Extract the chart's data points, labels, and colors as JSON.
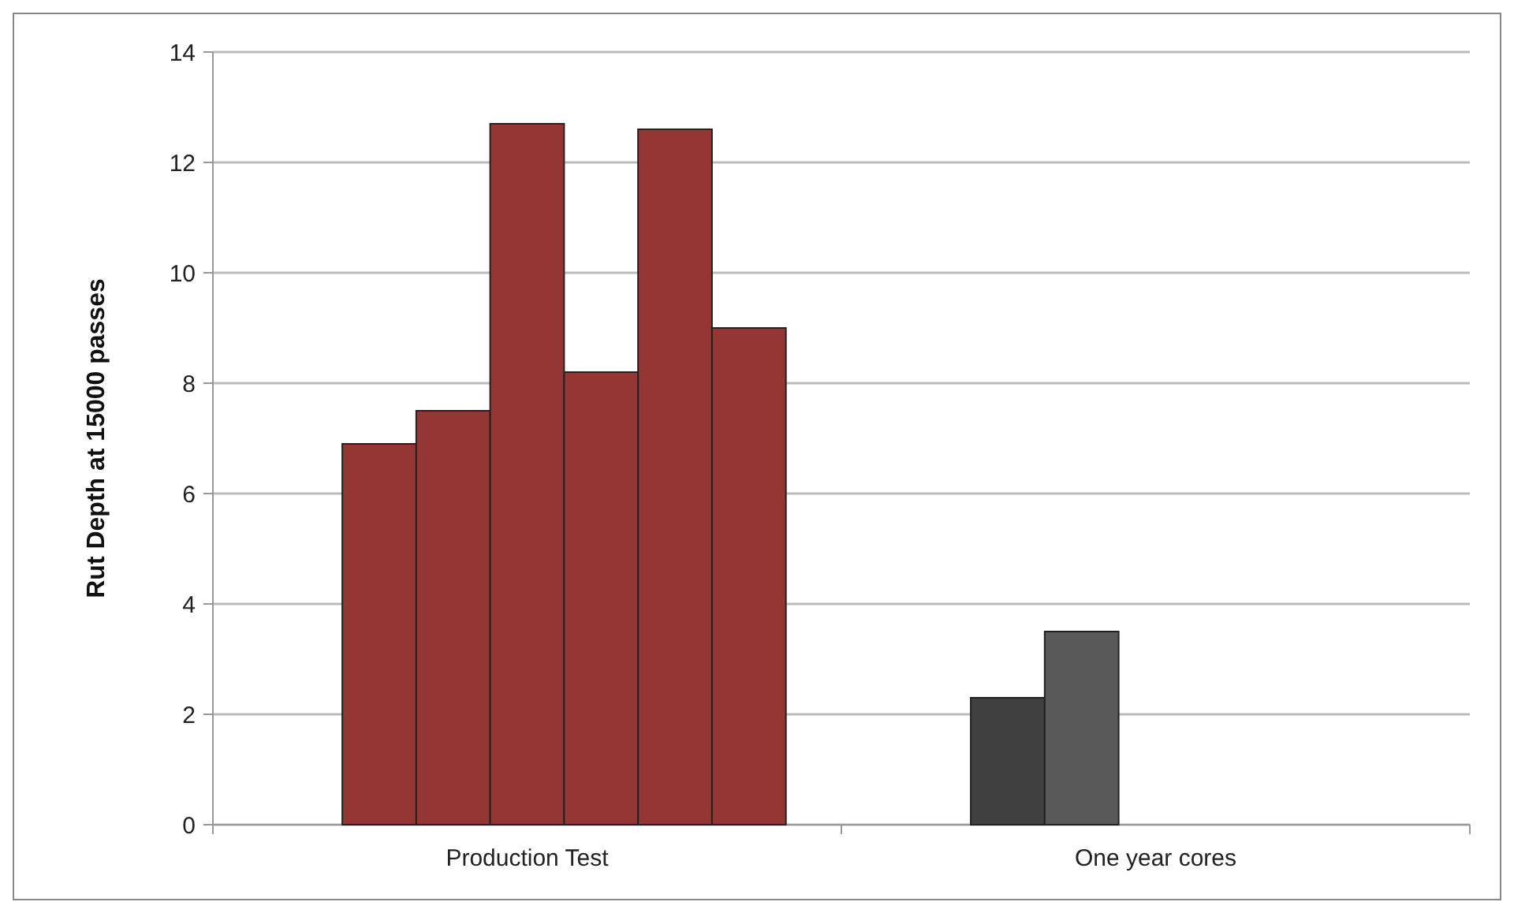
{
  "chart_data": {
    "type": "bar",
    "ylabel": "Rut Depth at 15000 passes",
    "categories": [
      "Production Test",
      "One year cores"
    ],
    "series": [
      {
        "colors": [
          "#943634",
          "#404040"
        ],
        "values": [
          6.9,
          2.3
        ]
      },
      {
        "colors": [
          "#943634",
          "#595959"
        ],
        "values": [
          7.5,
          3.5
        ]
      },
      {
        "color": "#943634",
        "values": [
          12.7,
          null
        ]
      },
      {
        "color": "#943634",
        "values": [
          8.2,
          null
        ]
      },
      {
        "color": "#943634",
        "values": [
          12.6,
          null
        ]
      },
      {
        "color": "#943634",
        "values": [
          9.0,
          null
        ]
      }
    ],
    "ylim": [
      0,
      14
    ],
    "yticks": [
      0,
      2,
      4,
      6,
      8,
      10,
      12,
      14
    ],
    "grid": "y"
  }
}
